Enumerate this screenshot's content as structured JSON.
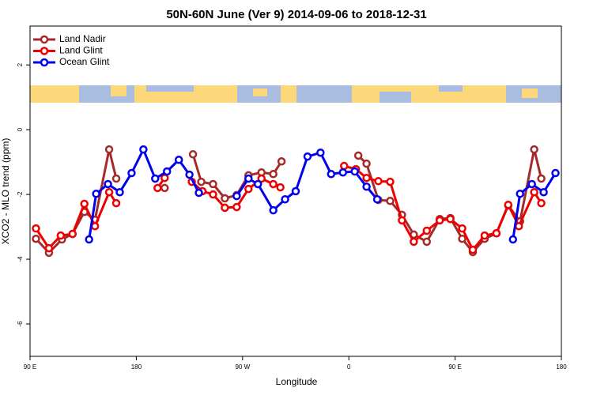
{
  "chart_data": {
    "type": "line",
    "title": "50N-60N June (Ver 9)   2014-09-06 to 2018-12-31",
    "x_label": "Longitude",
    "y_label": "XCO2 - MLO trend (ppm)",
    "legend": "top-left",
    "xlim": [
      90,
      540
    ],
    "xticks": [
      {
        "value": 90,
        "label": "90 E"
      },
      180,
      {
        "value": 270,
        "label": "90 W"
      },
      {
        "value": 360,
        "label": "0"
      },
      {
        "value": 450,
        "label": "90 E"
      },
      {
        "value": 540,
        "label": "180"
      }
    ],
    "ylim": [
      -7,
      3.2
    ],
    "yticks": [
      2,
      0,
      -2,
      -4,
      -6
    ],
    "series": [
      {
        "name": "Land Nadir",
        "color": "#a52a2a",
        "x": [
          95,
          106,
          117,
          126,
          136,
          145,
          157,
          163,
          null,
          204,
          null,
          228,
          235,
          245,
          255,
          265,
          275,
          286,
          296,
          303,
          null,
          368,
          375,
          385,
          395,
          405,
          415,
          426,
          437,
          446,
          456,
          465,
          475,
          485,
          495,
          505,
          517,
          523
        ],
        "values": [
          -3.37,
          -3.8,
          -3.39,
          -3.22,
          -2.54,
          -2.78,
          -0.61,
          -1.51,
          null,
          -1.8,
          null,
          -0.76,
          -1.61,
          -1.68,
          -2.12,
          -2.02,
          -1.41,
          -1.32,
          -1.37,
          -0.98,
          null,
          -0.8,
          -1.05,
          -2.17,
          -2.2,
          -2.63,
          -3.24,
          -3.46,
          -2.76,
          -2.73,
          -3.37,
          -3.78,
          -3.37,
          -3.2,
          -2.34,
          -2.83,
          -0.61,
          -1.51
        ]
      },
      {
        "name": "Land Glint",
        "color": "#ee0000",
        "x": [
          95,
          106,
          116,
          126,
          136,
          145,
          157,
          163,
          null,
          198,
          204,
          null,
          227,
          236,
          245,
          255,
          265,
          275,
          286,
          296,
          302,
          null,
          356,
          366,
          375,
          385,
          395,
          405,
          415,
          426,
          437,
          446,
          456,
          465,
          475,
          485,
          495,
          504,
          517,
          523
        ],
        "values": [
          -3.05,
          -3.66,
          -3.27,
          -3.22,
          -2.29,
          -2.98,
          -1.93,
          -2.27,
          null,
          -1.8,
          -1.49,
          null,
          -1.61,
          -1.9,
          -2.0,
          -2.41,
          -2.39,
          -1.83,
          -1.51,
          -1.68,
          -1.78,
          null,
          -1.12,
          -1.22,
          -1.49,
          -1.59,
          -1.61,
          -2.8,
          -3.46,
          -3.12,
          -2.8,
          -2.76,
          -3.05,
          -3.71,
          -3.27,
          -3.2,
          -2.32,
          -2.98,
          -1.93,
          -2.27
        ]
      },
      {
        "name": "Ocean Glint",
        "color": "#0000ee",
        "x": [
          140,
          146,
          156,
          166,
          176,
          186,
          196,
          206,
          216,
          225,
          233,
          null,
          265,
          275,
          283,
          296,
          306,
          315,
          325,
          336,
          345,
          355,
          365,
          375,
          384,
          null,
          499,
          505,
          515,
          525,
          535
        ],
        "values": [
          -3.39,
          -1.98,
          -1.68,
          -1.93,
          -1.34,
          -0.61,
          -1.51,
          -1.29,
          -0.93,
          -1.39,
          -1.95,
          null,
          -2.05,
          -1.51,
          -1.68,
          -2.49,
          -2.15,
          -1.9,
          -0.83,
          -0.71,
          -1.37,
          -1.32,
          -1.29,
          -1.76,
          -2.15,
          null,
          -3.39,
          -1.98,
          -1.68,
          -1.93,
          -1.34
        ]
      }
    ]
  }
}
